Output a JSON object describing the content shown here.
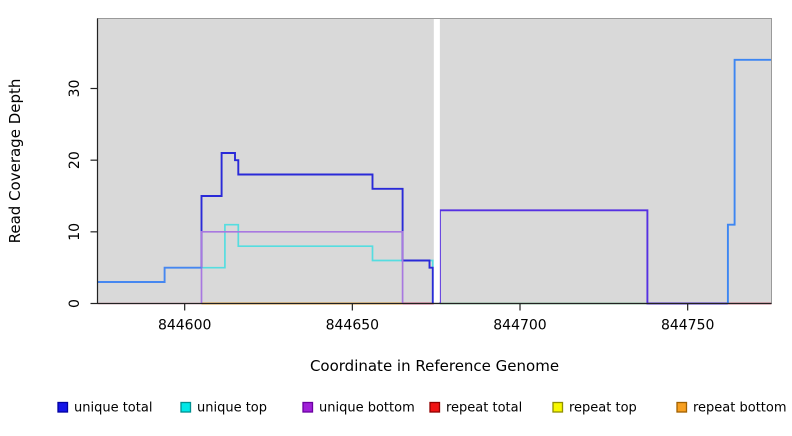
{
  "figure": {
    "background": "#ffffff",
    "plot_background": "#d9d9d9",
    "border_color": "#9a9a9a",
    "axis_color": "#222222"
  },
  "chart_data": {
    "type": "line",
    "subtype": "step",
    "title": "",
    "xlabel": "Coordinate in Reference Genome",
    "ylabel": "Read Coverage Depth",
    "x_ticks": [
      844600,
      844650,
      844700,
      844750
    ],
    "y_ticks": [
      0,
      10,
      20,
      30
    ],
    "x_range": [
      844574,
      844775
    ],
    "y_range": [
      0,
      39.8
    ],
    "grid": false,
    "legend_position": "bottom",
    "gap_band": {
      "x_start": 844674.3,
      "x_end": 844676.1,
      "color": "#ffffff"
    },
    "series": [
      {
        "name": "unique total",
        "color": "#0000ee",
        "steps": [
          [
            844574,
            3
          ],
          [
            844594,
            5
          ],
          [
            844605,
            15
          ],
          [
            844611,
            21
          ],
          [
            844615,
            20
          ],
          [
            844616,
            18
          ],
          [
            844656,
            16
          ],
          [
            844665,
            6
          ],
          [
            844673,
            5
          ],
          [
            844674,
            0
          ],
          [
            844676,
            13
          ],
          [
            844738,
            0
          ],
          [
            844762,
            11
          ],
          [
            844764,
            34
          ]
        ],
        "end": 844775
      },
      {
        "name": "unique top",
        "color": "#00ffff",
        "steps": [
          [
            844574,
            0
          ],
          [
            844605,
            5
          ],
          [
            844612,
            11
          ],
          [
            844616,
            8
          ],
          [
            844656,
            6
          ],
          [
            844674,
            0
          ]
        ],
        "end": 844775
      },
      {
        "name": "unique bottom",
        "color": "#a020f0",
        "steps": [
          [
            844574,
            0
          ],
          [
            844605,
            10
          ],
          [
            844665,
            0
          ],
          [
            844676,
            13
          ],
          [
            844738,
            0
          ]
        ],
        "end": 844775
      },
      {
        "name": "repeat total",
        "color": "#ff0000",
        "steps": [
          [
            844574,
            0
          ]
        ],
        "end": 844775
      },
      {
        "name": "repeat top",
        "color": "#ffff00",
        "steps": [
          [
            844574,
            0
          ]
        ],
        "end": 844775
      },
      {
        "name": "repeat bottom",
        "color": "#ffa500",
        "steps": [
          [
            844605,
            0
          ]
        ],
        "end": 844665
      }
    ],
    "visible_polylines": [
      {
        "name": "baseline-repeat-left",
        "color": "#ffafc8",
        "width": 1.5,
        "pts": [
          [
            844574,
            0
          ],
          [
            844605,
            0
          ]
        ]
      },
      {
        "name": "baseline-repeat-bottom",
        "color": "#ff9800",
        "width": 1.7,
        "pts": [
          [
            844605,
            0
          ],
          [
            844665,
            0
          ]
        ]
      },
      {
        "name": "baseline-repeat-mid",
        "color": "#e0356a",
        "width": 1.7,
        "pts": [
          [
            844665,
            0
          ],
          [
            844674.3,
            0
          ]
        ]
      },
      {
        "name": "baseline-green-blend",
        "color": "#8fd8a8",
        "width": 1.7,
        "pts": [
          [
            844676.1,
            0
          ],
          [
            844738,
            0
          ]
        ]
      },
      {
        "name": "baseline-repeat-right",
        "color": "#e8607a",
        "width": 1.7,
        "pts": [
          [
            844762,
            0
          ],
          [
            844775,
            0
          ]
        ]
      },
      {
        "name": "unique-top-line",
        "color": "#55dde0",
        "width": 1.7,
        "pts": [
          [
            844605,
            5
          ],
          [
            844612,
            5
          ],
          [
            844612,
            11
          ],
          [
            844616,
            11
          ],
          [
            844616,
            8
          ],
          [
            844656,
            8
          ],
          [
            844656,
            6
          ],
          [
            844674,
            6
          ],
          [
            844674,
            0
          ]
        ]
      },
      {
        "name": "unique-total-mid",
        "color": "#2a2ad8",
        "width": 1.9,
        "pts": [
          [
            844605,
            5
          ],
          [
            844605,
            15
          ],
          [
            844611,
            15
          ],
          [
            844611,
            21
          ],
          [
            844615,
            21
          ],
          [
            844615,
            20
          ],
          [
            844616,
            20
          ],
          [
            844616,
            18
          ],
          [
            844656,
            18
          ],
          [
            844656,
            16
          ],
          [
            844665,
            16
          ],
          [
            844665,
            6
          ],
          [
            844673,
            6
          ],
          [
            844673,
            5
          ],
          [
            844674,
            5
          ],
          [
            844674,
            0
          ]
        ]
      },
      {
        "name": "unique-bottom-line",
        "color": "#a878e0",
        "width": 1.7,
        "pts": [
          [
            844605,
            0
          ],
          [
            844605,
            10
          ],
          [
            844665,
            10
          ],
          [
            844665,
            0
          ]
        ]
      },
      {
        "name": "unique-total-bottom-overlap",
        "color": "#5630e2",
        "width": 1.9,
        "pts": [
          [
            844676.1,
            0
          ],
          [
            844676.1,
            13
          ],
          [
            844738,
            13
          ],
          [
            844738,
            0
          ],
          [
            844762,
            0
          ]
        ]
      },
      {
        "name": "unique-total-left",
        "color": "#4687f0",
        "width": 1.9,
        "pts": [
          [
            844574,
            3
          ],
          [
            844594,
            3
          ],
          [
            844594,
            5
          ],
          [
            844605,
            5
          ]
        ]
      },
      {
        "name": "unique-total-right",
        "color": "#3d86f2",
        "width": 1.9,
        "pts": [
          [
            844762,
            0
          ],
          [
            844762,
            11
          ],
          [
            844764,
            11
          ],
          [
            844764,
            34
          ],
          [
            844775,
            34
          ]
        ]
      }
    ],
    "legend": [
      {
        "label": "unique total",
        "fill": "#1414e8",
        "border": "#0000a0"
      },
      {
        "label": "unique top",
        "fill": "#00e8e8",
        "border": "#009090"
      },
      {
        "label": "unique bottom",
        "fill": "#a020d8",
        "border": "#6a00a0"
      },
      {
        "label": "repeat total",
        "fill": "#f01414",
        "border": "#900000"
      },
      {
        "label": "repeat top",
        "fill": "#f8f800",
        "border": "#909000"
      },
      {
        "label": "repeat bottom",
        "fill": "#f8a020",
        "border": "#a06000"
      }
    ]
  }
}
